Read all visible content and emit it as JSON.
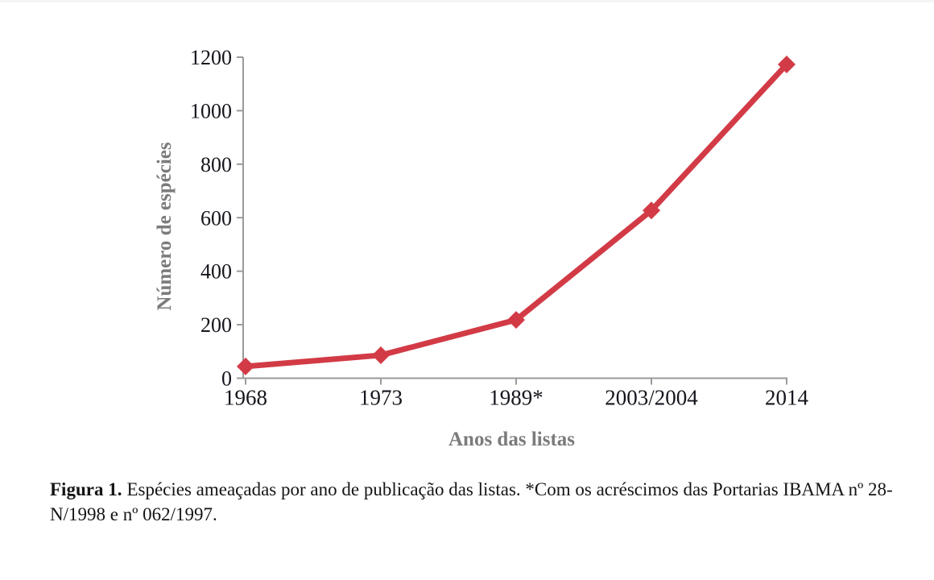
{
  "figure": {
    "caption_label": "Figura 1.",
    "caption_text": "Espécies ameaçadas por ano de publicação das listas. *Com os acréscimos das Portarias IBAMA nº 28-N/1998 e nº 062/1997."
  },
  "chart_data": {
    "type": "line",
    "categories": [
      "1968",
      "1973",
      "1989*",
      "2003/2004",
      "2014"
    ],
    "values": [
      44,
      86,
      218,
      627,
      1173
    ],
    "title": "",
    "xlabel": "Anos das listas",
    "ylabel": "Número de espécies",
    "ylim": [
      0,
      1200
    ],
    "yticks": [
      0,
      200,
      400,
      600,
      800,
      1000,
      1200
    ],
    "grid": false,
    "legend": "none",
    "marker": "diamond",
    "line_width": 7,
    "colors": {
      "line": "#d23b46",
      "marker": "#d23b46",
      "axis": "#9a9a9a",
      "tick_label": "#15151d",
      "axis_title": "#7b7b7b",
      "background": "#ffffff"
    }
  }
}
